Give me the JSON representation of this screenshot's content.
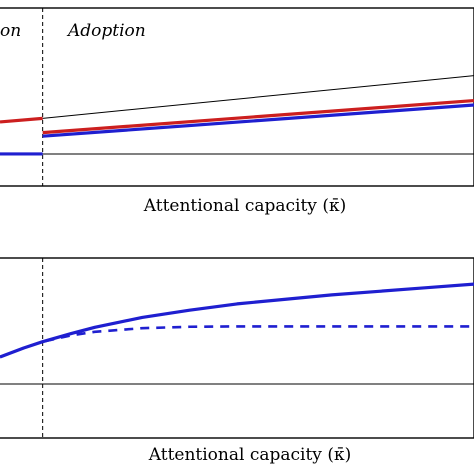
{
  "chart_data": [
    {
      "type": "line",
      "panel_labels": [
        "on",
        "Adoption"
      ],
      "xlabel": "Attentional capacity (κ̄)",
      "xlim": [
        0,
        1
      ],
      "ylim": [
        0,
        1
      ],
      "threshold_x": 0.09,
      "baseline_y": 0.18,
      "series": [
        {
          "style": "thin-black",
          "color": "#000000",
          "x": [
            0.09,
            1.0
          ],
          "y": [
            0.38,
            0.62
          ]
        },
        {
          "style": "thick-red",
          "color": "#cc1f1f",
          "x": [
            0.0,
            0.09
          ],
          "y": [
            0.36,
            0.38
          ]
        },
        {
          "style": "thick-red",
          "color": "#cc1f1f",
          "x": [
            0.09,
            1.0
          ],
          "y": [
            0.3,
            0.48
          ]
        },
        {
          "style": "thick-blue",
          "color": "#1f1fd0",
          "x": [
            0.0,
            0.09
          ],
          "y": [
            0.18,
            0.18
          ]
        },
        {
          "style": "thick-blue",
          "color": "#1f1fd0",
          "x": [
            0.09,
            1.0
          ],
          "y": [
            0.28,
            0.455
          ]
        }
      ]
    },
    {
      "type": "line",
      "xlabel": "Attentional capacity (κ̄)",
      "xlim": [
        0,
        1
      ],
      "ylim": [
        0,
        1
      ],
      "threshold_x": 0.09,
      "baseline_y": 0.3,
      "series": [
        {
          "style": "thick-blue",
          "color": "#1f1fd0",
          "x": [
            0.0,
            0.05,
            0.09,
            0.15,
            0.2,
            0.3,
            0.4,
            0.5,
            0.6,
            0.7,
            0.8,
            0.9,
            1.0
          ],
          "y": [
            0.45,
            0.5,
            0.535,
            0.58,
            0.615,
            0.67,
            0.71,
            0.745,
            0.77,
            0.795,
            0.815,
            0.835,
            0.855
          ]
        },
        {
          "style": "dashed-blue",
          "color": "#1f1fd0",
          "x": [
            0.0,
            0.05,
            0.09,
            0.15,
            0.2,
            0.3,
            0.4,
            0.5,
            0.6,
            0.7,
            0.8,
            0.9,
            1.0
          ],
          "y": [
            0.45,
            0.5,
            0.535,
            0.57,
            0.59,
            0.61,
            0.618,
            0.62,
            0.62,
            0.62,
            0.62,
            0.62,
            0.62
          ]
        }
      ]
    }
  ]
}
